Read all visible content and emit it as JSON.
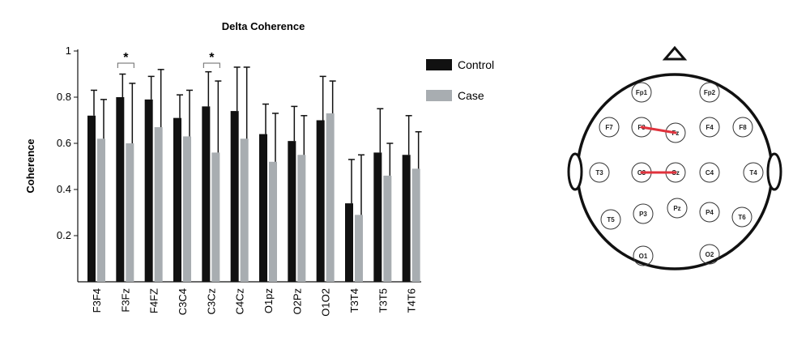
{
  "chart_data": {
    "type": "bar",
    "title": "Delta Coherence",
    "ylabel": "Coherence",
    "xlabel": "",
    "ylim": [
      0,
      1
    ],
    "yticks": [
      0.2,
      0.4,
      0.6,
      0.8,
      1
    ],
    "ytick_labels": [
      "0.2",
      "0.4",
      "0.6",
      "0.8",
      "1"
    ],
    "categories": [
      "F3F4",
      "F3Fz",
      "F4FZ",
      "C3C4",
      "C3Cz",
      "C4Cz",
      "O1pz",
      "O2Pz",
      "O1O2",
      "T3T4",
      "T3T5",
      "T4T6"
    ],
    "series": [
      {
        "name": "Control",
        "color": "#111111",
        "values": [
          0.72,
          0.8,
          0.79,
          0.71,
          0.76,
          0.74,
          0.64,
          0.61,
          0.7,
          0.34,
          0.56,
          0.55
        ],
        "error": [
          0.11,
          0.1,
          0.1,
          0.1,
          0.15,
          0.19,
          0.13,
          0.15,
          0.19,
          0.19,
          0.19,
          0.17
        ]
      },
      {
        "name": "Case",
        "color": "#a8adb1",
        "values": [
          0.62,
          0.6,
          0.67,
          0.63,
          0.56,
          0.62,
          0.52,
          0.55,
          0.73,
          0.29,
          0.46,
          0.49
        ],
        "error": [
          0.17,
          0.26,
          0.25,
          0.2,
          0.31,
          0.31,
          0.21,
          0.17,
          0.14,
          0.26,
          0.14,
          0.16
        ]
      }
    ],
    "significance": [
      {
        "category_index": 1,
        "symbol": "*"
      },
      {
        "category_index": 4,
        "symbol": "*"
      }
    ],
    "legend": {
      "position": "right"
    },
    "grid": false
  },
  "head_map": {
    "connection_color": "#e0323c",
    "electrodes": [
      {
        "label": "Fp1"
      },
      {
        "label": "Fp2"
      },
      {
        "label": "F7"
      },
      {
        "label": "F3"
      },
      {
        "label": "Fz"
      },
      {
        "label": "F4"
      },
      {
        "label": "F8"
      },
      {
        "label": "T3"
      },
      {
        "label": "C3"
      },
      {
        "label": "Cz"
      },
      {
        "label": "C4"
      },
      {
        "label": "T4"
      },
      {
        "label": "T5"
      },
      {
        "label": "P3"
      },
      {
        "label": "Pz"
      },
      {
        "label": "P4"
      },
      {
        "label": "T6"
      },
      {
        "label": "O1"
      },
      {
        "label": "O2"
      }
    ],
    "connections": [
      [
        "F3",
        "Fz"
      ],
      [
        "C3",
        "Cz"
      ]
    ]
  }
}
